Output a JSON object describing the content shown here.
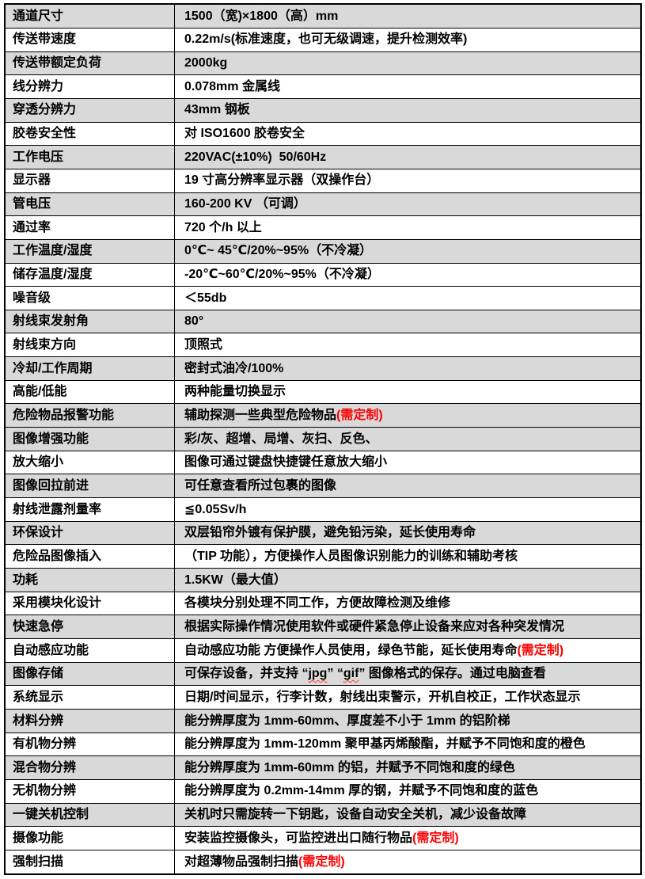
{
  "page": {
    "kind": "specification-table",
    "language": "zh-CN"
  },
  "colors": {
    "row_shaded_bg": "#d9d9d9",
    "row_plain_bg": "#ffffff",
    "border": "#000000",
    "text": "#000000",
    "custom_required_text": "#ff0000",
    "spellcheck_wavy_underline": "#ff3b30"
  },
  "table": {
    "rows": [
      {
        "label": "通道尺寸",
        "shaded": true,
        "value": [
          {
            "t": "1500（宽)×1800（高）mm"
          }
        ]
      },
      {
        "label": "传送带速度",
        "shaded": false,
        "value": [
          {
            "t": "0.22m/s(标准速度，也可无级调速，提升检测效率)"
          }
        ]
      },
      {
        "label": "传送带额定负荷",
        "shaded": true,
        "value": [
          {
            "t": "2000kg"
          }
        ]
      },
      {
        "label": "线分辨力",
        "shaded": false,
        "value": [
          {
            "t": "0.078mm 金属线"
          }
        ]
      },
      {
        "label": "穿透分辨力",
        "shaded": true,
        "value": [
          {
            "t": "43mm 钢板"
          }
        ]
      },
      {
        "label": "胶卷安全性",
        "shaded": false,
        "value": [
          {
            "t": "对 ISO1600 胶卷安全"
          }
        ]
      },
      {
        "label": "工作电压",
        "shaded": true,
        "value": [
          {
            "t": "220VAC(±10%)  50/60Hz"
          }
        ]
      },
      {
        "label": "显示器",
        "shaded": false,
        "value": [
          {
            "t": "19 寸高分辨率显示器（双操作台）"
          }
        ]
      },
      {
        "label": "管电压",
        "shaded": true,
        "value": [
          {
            "t": "160-200 KV （可调）"
          }
        ]
      },
      {
        "label": "通过率",
        "shaded": false,
        "value": [
          {
            "t": "720 个/h 以上"
          }
        ]
      },
      {
        "label": "工作温度/湿度",
        "shaded": true,
        "value": [
          {
            "t": "0℃~ 45℃/20%~95%（不冷凝）"
          }
        ]
      },
      {
        "label": "储存温度/湿度",
        "shaded": false,
        "value": [
          {
            "t": "-20℃~60℃/20%~95%（不冷凝）"
          }
        ]
      },
      {
        "label": "噪音级",
        "shaded": false,
        "value": [
          {
            "t": "＜55db"
          }
        ]
      },
      {
        "label": "射线束发射角",
        "shaded": true,
        "value": [
          {
            "t": "80°"
          }
        ]
      },
      {
        "label": "射线束方向",
        "shaded": false,
        "value": [
          {
            "t": "顶照式"
          }
        ]
      },
      {
        "label": "冷却/工作周期",
        "shaded": true,
        "value": [
          {
            "t": "密封式油冷/100%"
          }
        ]
      },
      {
        "label": "高能/低能",
        "shaded": false,
        "value": [
          {
            "t": "两种能量切换显示"
          }
        ]
      },
      {
        "label": "危险物品报警功能",
        "shaded": true,
        "value": [
          {
            "t": "辅助探测一些典型危险物品"
          },
          {
            "t": "(需定制)",
            "red": true
          }
        ]
      },
      {
        "label": "图像增强功能",
        "shaded": true,
        "value": [
          {
            "t": "彩/灰、超增、局增、灰扫、反色、"
          }
        ]
      },
      {
        "label": "放大缩小",
        "shaded": false,
        "value": [
          {
            "t": "图像可通过键盘快捷键任意放大缩小"
          }
        ]
      },
      {
        "label": "图像回拉前进",
        "shaded": true,
        "value": [
          {
            "t": "可任意查看所过包裹的图像"
          }
        ]
      },
      {
        "label": "射线泄露剂量率",
        "shaded": false,
        "value": [
          {
            "t": "≦0.05Sv/h"
          }
        ]
      },
      {
        "label": "环保设计",
        "shaded": true,
        "value": [
          {
            "t": "双层铅帘外镀有保护膜，避免铅污染，延长使用寿命"
          }
        ]
      },
      {
        "label": "危险品图像插入",
        "shaded": false,
        "value": [
          {
            "t": "（TIP 功能），方便操作人员图像识别能力的训练和辅助考核"
          }
        ]
      },
      {
        "label": "功耗",
        "shaded": true,
        "value": [
          {
            "t": "1.5KW（最大值）"
          }
        ]
      },
      {
        "label": "采用模块化设计",
        "shaded": false,
        "value": [
          {
            "t": "各模块分别处理不同工作，方便故障检测及维修"
          }
        ]
      },
      {
        "label": "快速急停",
        "shaded": true,
        "value": [
          {
            "t": "根据实际操作情况使用软件或硬件紧急停止设备来应对各种突发情况"
          }
        ]
      },
      {
        "label": "自动感应功能",
        "shaded": false,
        "value": [
          {
            "t": "自动感应功能 方便操作人员使用，绿色节能，延长使用寿命"
          },
          {
            "t": "(需定制)",
            "red": true
          }
        ]
      },
      {
        "label": "图像存储",
        "shaded": true,
        "value": [
          {
            "t": "可保存设备，并支持 “"
          },
          {
            "t": "jpg",
            "wavy": true
          },
          {
            "t": "” “"
          },
          {
            "t": "gif",
            "wavy": true
          },
          {
            "t": "” 图像格式的保存。通过电脑查看"
          }
        ]
      },
      {
        "label": "系统显示",
        "shaded": false,
        "value": [
          {
            "t": "日期/时间显示，行李计数，射线出束警示，开机自校正，工作状态显示"
          }
        ]
      },
      {
        "label": "材料分辨",
        "shaded": true,
        "value": [
          {
            "t": "能分辨厚度为 1mm-60mm、厚度差不小于 1mm 的铝阶梯"
          }
        ]
      },
      {
        "label": "有机物分辨",
        "shaded": false,
        "value": [
          {
            "t": "能分辨厚度为 1mm-120mm 聚甲基丙烯酸酯，并赋予不同饱和度的橙色"
          }
        ]
      },
      {
        "label": "混合物分辨",
        "shaded": true,
        "value": [
          {
            "t": "能分辨厚度为 1mm-60mm 的铝，并赋予不同饱和度的绿色"
          }
        ]
      },
      {
        "label": "无机物分辨",
        "shaded": false,
        "value": [
          {
            "t": "能分辨厚度为 0.2mm-14mm 厚的钢，并赋予不同饱和度的蓝色"
          }
        ]
      },
      {
        "label": "一键关机控制",
        "shaded": true,
        "value": [
          {
            "t": "关机时只需旋转一下钥匙，设备自动安全关机，减少设备故障"
          }
        ]
      },
      {
        "label": "摄像功能",
        "shaded": false,
        "value": [
          {
            "t": "安装监控摄像头，可监控进出口随行物品"
          },
          {
            "t": "(需定制)",
            "red": true
          }
        ]
      },
      {
        "label": "强制扫描",
        "shaded": false,
        "value": [
          {
            "t": "对超薄物品强制扫描"
          },
          {
            "t": "(需定制)",
            "red": true
          }
        ]
      }
    ]
  }
}
